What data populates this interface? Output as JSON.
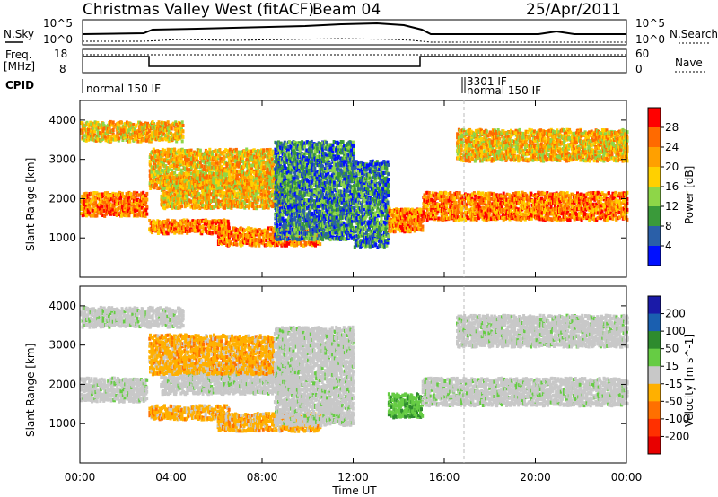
{
  "header": {
    "station": "Christmas Valley West (fitACF)",
    "beam": "Beam 04",
    "date": "25/Apr/2011"
  },
  "summary": {
    "nsky_label": "N.Sky",
    "nsearch_label": "N.Search",
    "freq_label_1": "Freq.",
    "freq_label_2": "[MHz]",
    "nave_label": "Nave",
    "cpid_label": "CPID",
    "nsky_ticks": [
      "10^5",
      "10^0"
    ],
    "nsearch_ticks": [
      "10^5",
      "10^0"
    ],
    "freq_ticks": [
      "18",
      "8"
    ],
    "nave_ticks": [
      "60",
      "0"
    ],
    "cpid_segments": [
      {
        "start_hour": 0.0,
        "end_hour": 17.0,
        "label": "normal 150 IF"
      },
      {
        "start_hour": 16.95,
        "end_hour": 17.0,
        "label": "3301 IF"
      },
      {
        "start_hour": 17.0,
        "end_hour": 24.0,
        "label": "normal 150 IF"
      }
    ]
  },
  "chart_data": [
    {
      "type": "heatmap",
      "name": "power",
      "title": "",
      "xlabel": "",
      "ylabel": "Slant Range [km]",
      "x_range_hours": [
        0,
        24
      ],
      "ylim": [
        0,
        4500
      ],
      "yticks": [
        "1000",
        "2000",
        "3000",
        "4000"
      ],
      "colorbar": {
        "label": "Power [dB]",
        "ticks": [
          "28",
          "24",
          "20",
          "16",
          "12",
          "8",
          "4"
        ],
        "colors": [
          "#ff0000",
          "#ff6a00",
          "#ffa000",
          "#ffd000",
          "#8ed648",
          "#3a9a3a",
          "#2a5fa8",
          "#0010ff"
        ]
      },
      "scatter_bands": [
        {
          "start": 0.0,
          "end": 2.9,
          "range_low": 1600,
          "range_high": 2200,
          "level": "high"
        },
        {
          "start": 3.0,
          "end": 6.5,
          "range_low": 1150,
          "range_high": 1500,
          "level": "high"
        },
        {
          "start": 3.5,
          "end": 9.5,
          "range_low": 1800,
          "range_high": 2600,
          "level": "mid"
        },
        {
          "start": 0.0,
          "end": 4.5,
          "range_low": 3500,
          "range_high": 4000,
          "level": "mid"
        },
        {
          "start": 3.0,
          "end": 8.5,
          "range_low": 2300,
          "range_high": 3300,
          "level": "mid"
        },
        {
          "start": 6.0,
          "end": 10.5,
          "range_low": 850,
          "range_high": 1300,
          "level": "high"
        },
        {
          "start": 8.5,
          "end": 12.0,
          "range_low": 1000,
          "range_high": 3500,
          "level": "low"
        },
        {
          "start": 12.0,
          "end": 13.5,
          "range_low": 800,
          "range_high": 3000,
          "level": "low"
        },
        {
          "start": 13.5,
          "end": 15.0,
          "range_low": 1200,
          "range_high": 1800,
          "level": "high"
        },
        {
          "start": 15.0,
          "end": 24.0,
          "range_low": 1500,
          "range_high": 2200,
          "level": "high"
        },
        {
          "start": 16.5,
          "end": 24.0,
          "range_low": 3000,
          "range_high": 3800,
          "level": "mid"
        }
      ]
    },
    {
      "type": "heatmap",
      "name": "velocity",
      "title": "",
      "xlabel": "Time UT",
      "ylabel": "Slant Range [km]",
      "x_range_hours": [
        0,
        24
      ],
      "ylim": [
        0,
        4500
      ],
      "xticks": [
        "00:00",
        "04:00",
        "08:00",
        "12:00",
        "16:00",
        "20:00",
        "00:00"
      ],
      "yticks": [
        "1000",
        "2000",
        "3000",
        "4000"
      ],
      "colorbar": {
        "label": "Velocity [m s^-1]",
        "ticks": [
          "200",
          "100",
          "50",
          "15",
          "-15",
          "-50",
          "-100",
          "-200"
        ],
        "colors": [
          "#1a1aa8",
          "#1a5fb0",
          "#2e8b2e",
          "#66cc44",
          "#c8c8c8",
          "#ffb000",
          "#ff7000",
          "#ff3000",
          "#e80000"
        ]
      },
      "scatter_bands": [
        {
          "start": 0.0,
          "end": 2.9,
          "range_low": 1600,
          "range_high": 2200,
          "velocity": "ground"
        },
        {
          "start": 3.0,
          "end": 6.5,
          "range_low": 1150,
          "range_high": 1500,
          "velocity": "negative"
        },
        {
          "start": 3.5,
          "end": 9.5,
          "range_low": 1800,
          "range_high": 2600,
          "velocity": "ground"
        },
        {
          "start": 0.0,
          "end": 4.5,
          "range_low": 3500,
          "range_high": 4000,
          "velocity": "ground"
        },
        {
          "start": 3.0,
          "end": 8.5,
          "range_low": 2300,
          "range_high": 3300,
          "velocity": "negative"
        },
        {
          "start": 6.0,
          "end": 10.5,
          "range_low": 850,
          "range_high": 1300,
          "velocity": "negative"
        },
        {
          "start": 8.5,
          "end": 12.0,
          "range_low": 1000,
          "range_high": 3500,
          "velocity": "ground"
        },
        {
          "start": 13.5,
          "end": 15.0,
          "range_low": 1200,
          "range_high": 1800,
          "velocity": "positive"
        },
        {
          "start": 15.0,
          "end": 24.0,
          "range_low": 1500,
          "range_high": 2200,
          "velocity": "ground"
        },
        {
          "start": 16.5,
          "end": 24.0,
          "range_low": 3000,
          "range_high": 3800,
          "velocity": "ground"
        }
      ]
    }
  ]
}
